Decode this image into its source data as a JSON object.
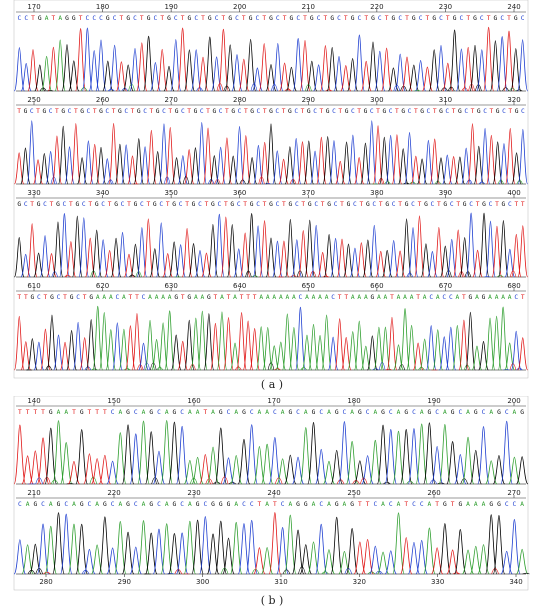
{
  "colors": {
    "A": "#2e9e2e",
    "C": "#1f3fd0",
    "G": "#000000",
    "T": "#e01818"
  },
  "caption_a": "( a )",
  "caption_b": "( b )",
  "panel_a": {
    "rows": [
      {
        "ticks": [
          170,
          180,
          190,
          200,
          210,
          220,
          230,
          240
        ],
        "tick_pos": "top",
        "seq": "CCTGATAGGTCCCGCTGCTGCTGCTGCTGCTGCTGCTGCTGCTGCTGCTGCTGCTGCTGCTGCTGCTGCTGCTGC"
      },
      {
        "ticks": [
          250,
          260,
          270,
          280,
          290,
          300,
          310,
          320
        ],
        "tick_pos": "top",
        "seq": "TGCTGCTGCTGCTGCTGCTGCTGCTGCTGCTGCTGCTGCTGCTGCTGCTGCTGCTGCTGCTGCTGCTGCTGCTGCTGCTGC"
      },
      {
        "ticks": [
          330,
          340,
          350,
          360,
          370,
          380,
          390,
          400
        ],
        "tick_pos": "top",
        "seq": "GCTGCTGCTGCTGCTGCTGCTGCTGCTGCTGCTGCTGCTGCTGCTGCTGCTGCTGCTGCTGCTGCTGCTGCTGCTGCTT"
      },
      {
        "ticks": [
          610,
          620,
          630,
          640,
          650,
          660,
          670,
          680
        ],
        "tick_pos": "top",
        "seq": "TTGCTGCTGCTGAAACATTCAAAAGTGAAGTATATTTAAAAAACAAAACTTAAAGAATAAATACACCATGAGAAAACT"
      }
    ]
  },
  "panel_b": {
    "rows": [
      {
        "ticks": [
          140,
          150,
          160,
          170,
          180,
          190,
          200
        ],
        "tick_pos": "top",
        "seq": "TTTTGAATGTTTCAGCAGCAGCAATAGCAGCAACAGCAGCAGCAGCAGCAGCAGCAGCAGCAGCAG"
      },
      {
        "ticks": [
          210,
          220,
          230,
          240,
          250,
          260,
          270
        ],
        "tick_pos": "top",
        "seq": "CAGCAGCAGCAGCAGCAGCAGCAGCGGGACCTATCAGGACAGAGTTCACATCCATGTGAAAGGCCA"
      }
    ],
    "bottom_ticks": [
      280,
      290,
      300,
      310,
      320,
      330,
      340
    ]
  }
}
